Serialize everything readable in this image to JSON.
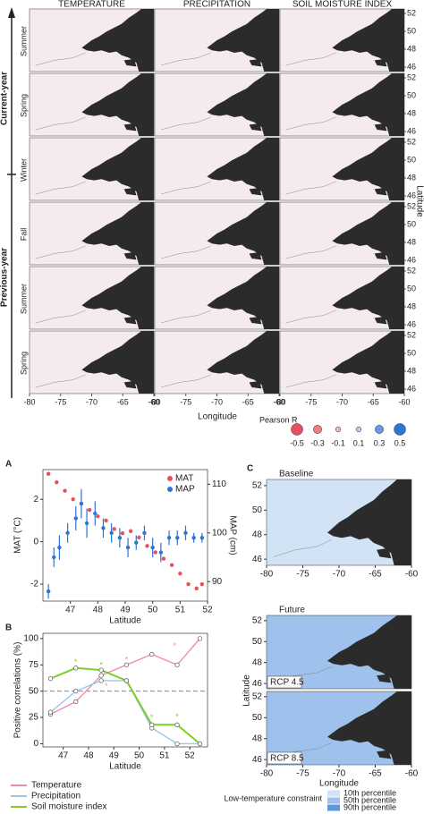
{
  "maps": {
    "columns": [
      "TEMPERATURE",
      "PRECIPITATION",
      "SOIL MOISTURE INDEX"
    ],
    "rows": [
      "Summer",
      "Spring",
      "Winter",
      "Fall",
      "Summer",
      "Spring"
    ],
    "groups": [
      "Current-year",
      "Previous-year"
    ],
    "xlim": [
      -80,
      -60
    ],
    "xticks": [
      -80,
      -75,
      -70,
      -65,
      -60
    ],
    "ylim": [
      45.5,
      52.5
    ],
    "yticks": [
      46,
      48,
      50,
      52
    ],
    "xlabel": "Longitude",
    "ylabel": "Latitude"
  },
  "pearson_legend": {
    "title": "Pearson R",
    "values": [
      -0.5,
      -0.3,
      -0.1,
      0.1,
      0.3,
      0.5
    ],
    "colors": [
      "#e8505b",
      "#ee7d86",
      "#f3b4ba",
      "#b6cdef",
      "#6a9be0",
      "#2f74d0"
    ]
  },
  "chart_data": [
    {
      "panel": "A",
      "type": "scatter",
      "xlabel": "Latitude",
      "ylabel": "MAT (°C)",
      "y2label": "MAP (cm)",
      "xlim": [
        46,
        52
      ],
      "xticks": [
        47,
        48,
        49,
        50,
        51,
        52
      ],
      "ylim": [
        -2.8,
        3.4
      ],
      "yticks": [
        -2,
        0,
        2
      ],
      "y2lim": [
        86,
        113
      ],
      "y2ticks": [
        90,
        100,
        110
      ],
      "legend": "top right",
      "series": [
        {
          "name": "MAT",
          "color": "#e8505b",
          "x": [
            46.2,
            46.5,
            46.8,
            47.1,
            47.4,
            47.7,
            48.0,
            48.3,
            48.6,
            48.9,
            49.2,
            49.5,
            49.8,
            50.1,
            50.4,
            50.7,
            51.0,
            51.3,
            51.6,
            51.8
          ],
          "values": [
            3.2,
            2.8,
            2.4,
            2.0,
            1.8,
            1.5,
            1.2,
            1.0,
            0.6,
            0.4,
            0.5,
            0.2,
            -0.2,
            -0.5,
            -0.8,
            -1.1,
            -1.5,
            -2.0,
            -2.2,
            -2.0
          ]
        },
        {
          "name": "MAP",
          "color": "#2f74d0",
          "axis": "y2",
          "x": [
            46.2,
            46.4,
            46.6,
            46.9,
            47.2,
            47.4,
            47.6,
            47.9,
            48.2,
            48.5,
            48.8,
            49.1,
            49.4,
            49.7,
            50.0,
            50.3,
            50.6,
            50.9,
            51.2,
            51.5,
            51.8
          ],
          "values": [
            88,
            95,
            97,
            100,
            103,
            106,
            102,
            104,
            101,
            100,
            99,
            97,
            98,
            100,
            97,
            96,
            99,
            99,
            100,
            99,
            99
          ],
          "errors": [
            1.5,
            2,
            2.5,
            2,
            2.5,
            3,
            3,
            2.5,
            2,
            2,
            2,
            2,
            1.5,
            1.5,
            2,
            2,
            1.5,
            1.5,
            1.5,
            1,
            1
          ]
        }
      ]
    },
    {
      "panel": "B",
      "type": "line",
      "xlabel": "Latitude",
      "ylabel": "Positive correlations (%)",
      "xlim": [
        46.2,
        52.7
      ],
      "xticks": [
        47,
        48,
        49,
        50,
        51,
        52
      ],
      "ylim": [
        -3,
        105
      ],
      "yticks": [
        0,
        25,
        50,
        75,
        100
      ],
      "hline": 50,
      "x": [
        46.5,
        47.5,
        48.5,
        49.5,
        50.5,
        51.5,
        52.4
      ],
      "series": [
        {
          "name": "Temperature",
          "color": "#f08cb0",
          "values": [
            28,
            40,
            65,
            75,
            85,
            75,
            100
          ]
        },
        {
          "name": "Precipitation",
          "color": "#9cc8e8",
          "values": [
            30,
            50,
            60,
            60,
            15,
            0,
            0
          ]
        },
        {
          "name": "Soil moisture index",
          "color": "#7ccf2a",
          "values": [
            62,
            72,
            70,
            60,
            18,
            18,
            0
          ]
        }
      ],
      "annotations": [
        {
          "text": "*",
          "x": 47.5,
          "y": 80,
          "color": "#7ccf2a"
        },
        {
          "text": "*",
          "x": 48.5,
          "y": 77,
          "color": "#7ccf2a"
        },
        {
          "text": "*",
          "x": 50.5,
          "y": 27,
          "color": "#7ccf2a"
        },
        {
          "text": "*",
          "x": 51.5,
          "y": 28,
          "color": "#7ccf2a"
        },
        {
          "text": "*",
          "x": 48.7,
          "y": 57,
          "color": "#f08cb0"
        },
        {
          "text": "*",
          "x": 49.5,
          "y": 82,
          "color": "#f08cb0"
        },
        {
          "text": "*",
          "x": 51.4,
          "y": 95,
          "color": "#f08cb0"
        }
      ]
    }
  ],
  "panel_c": {
    "panel": "C",
    "maps": [
      "Baseline",
      "Future"
    ],
    "scenarios": [
      "RCP 4.5",
      "RCP 8.5"
    ],
    "xlim": [
      -80,
      -60
    ],
    "xticks": [
      -80,
      -75,
      -70,
      -65,
      -60
    ],
    "ylim": [
      45.5,
      52.5
    ],
    "yticks": [
      46,
      48,
      50,
      52
    ],
    "xlabel": "Longitude",
    "ylabel": "Latitude",
    "legend_title": "Low-temperature constraint",
    "legend": [
      {
        "label": "10th percentile",
        "color": "#d3e3f6"
      },
      {
        "label": "50th percentile",
        "color": "#9fc2ec"
      },
      {
        "label": "90th percentile",
        "color": "#5e97dc"
      }
    ]
  }
}
